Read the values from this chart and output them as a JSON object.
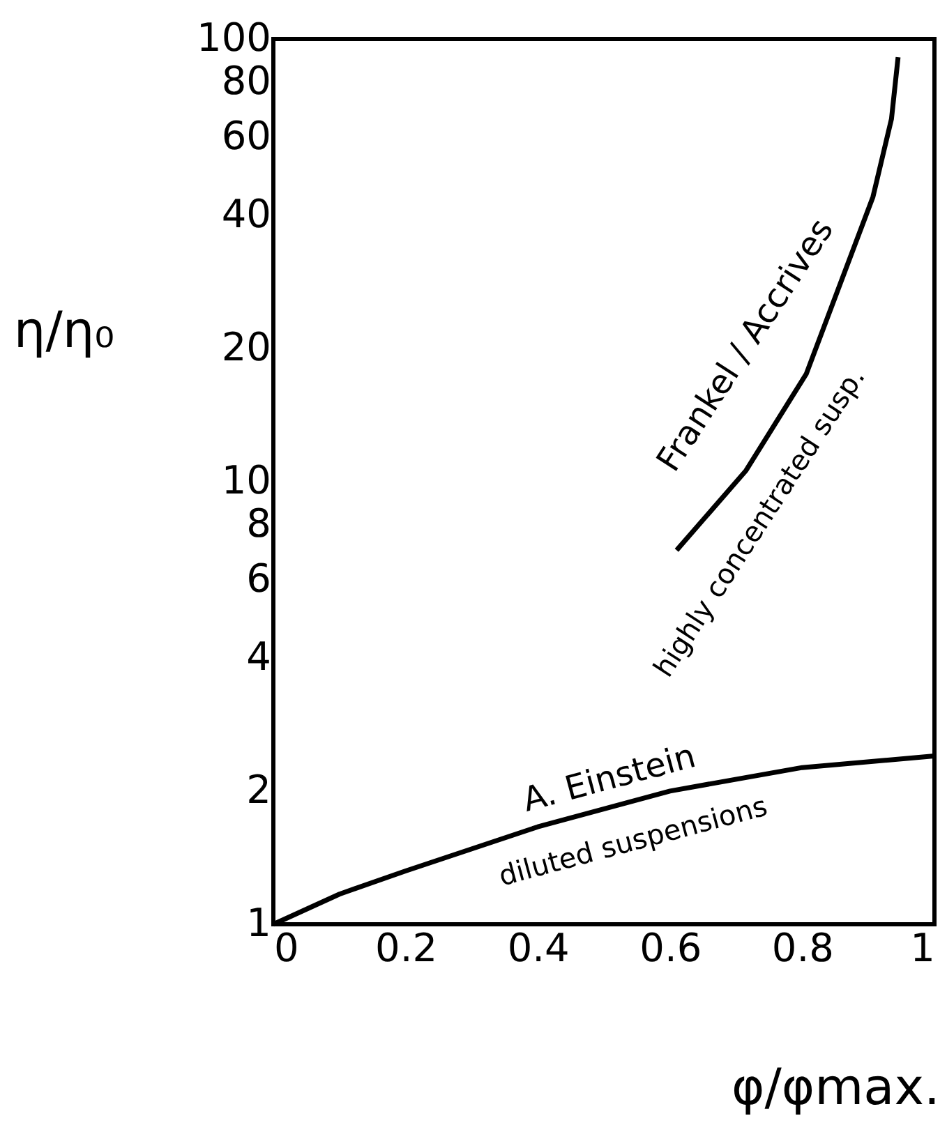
{
  "chart_data": {
    "type": "line",
    "xlabel": "φ/φmax.",
    "ylabel": "η/η₀",
    "log": "y",
    "xlim": [
      0,
      1
    ],
    "ylim": [
      1,
      100
    ],
    "xticks": [
      0,
      0.2,
      0.4,
      0.6,
      0.8,
      1
    ],
    "yticks": [
      1,
      2,
      4,
      6,
      8,
      10,
      20,
      40,
      60,
      80,
      100
    ],
    "grid": false,
    "marker": "none",
    "line_style": "solid",
    "series": [
      {
        "color": "#000000",
        "x": [
          0,
          0.1,
          0.2,
          0.4,
          0.6,
          0.8,
          1
        ],
        "values": [
          1,
          1.17,
          1.32,
          1.66,
          2.0,
          2.26,
          2.4
        ]
      },
      {
        "color": "#000000",
        "x": [
          0.61,
          0.715,
          0.806,
          0.907,
          0.935,
          0.945
        ],
        "values": [
          7.0,
          10.6,
          17.5,
          44,
          66,
          91
        ]
      }
    ],
    "annotations": [
      "Frankel / Accrives",
      "highly concentrated susp.",
      "A. Einstein",
      "diluted suspensions"
    ]
  }
}
